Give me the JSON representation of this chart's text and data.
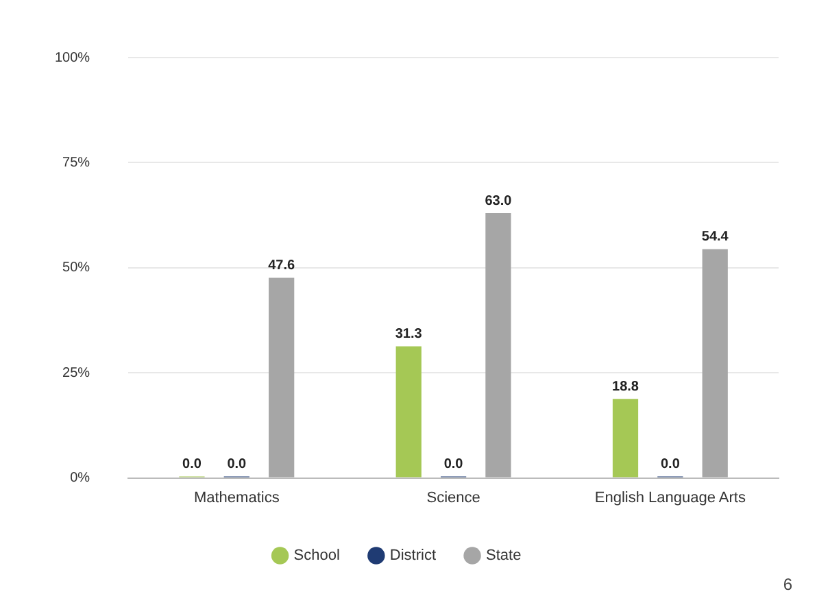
{
  "chart_data": {
    "type": "bar",
    "categories": [
      "Mathematics",
      "Science",
      "English Language Arts"
    ],
    "series": [
      {
        "name": "School",
        "color": "#a5c855",
        "values": [
          0.0,
          31.3,
          18.8
        ],
        "value_labels": [
          "0.0",
          "31.3",
          "18.8"
        ]
      },
      {
        "name": "District",
        "color": "#1f3b73",
        "values": [
          0.0,
          0.0,
          0.0
        ],
        "value_labels": [
          "0.0",
          "0.0",
          "0.0"
        ]
      },
      {
        "name": "State",
        "color": "#a6a6a6",
        "values": [
          47.6,
          63.0,
          54.4
        ],
        "value_labels": [
          "47.6",
          "63.0",
          "54.4"
        ]
      }
    ],
    "ylim": [
      0,
      100
    ],
    "yticks": [
      {
        "value": 0,
        "label": "0%"
      },
      {
        "value": 25,
        "label": "25%"
      },
      {
        "value": 50,
        "label": "50%"
      },
      {
        "value": 75,
        "label": "75%"
      },
      {
        "value": 100,
        "label": "100%"
      }
    ],
    "grid": "y",
    "legend": "bottom",
    "annotations": [
      "6"
    ]
  }
}
